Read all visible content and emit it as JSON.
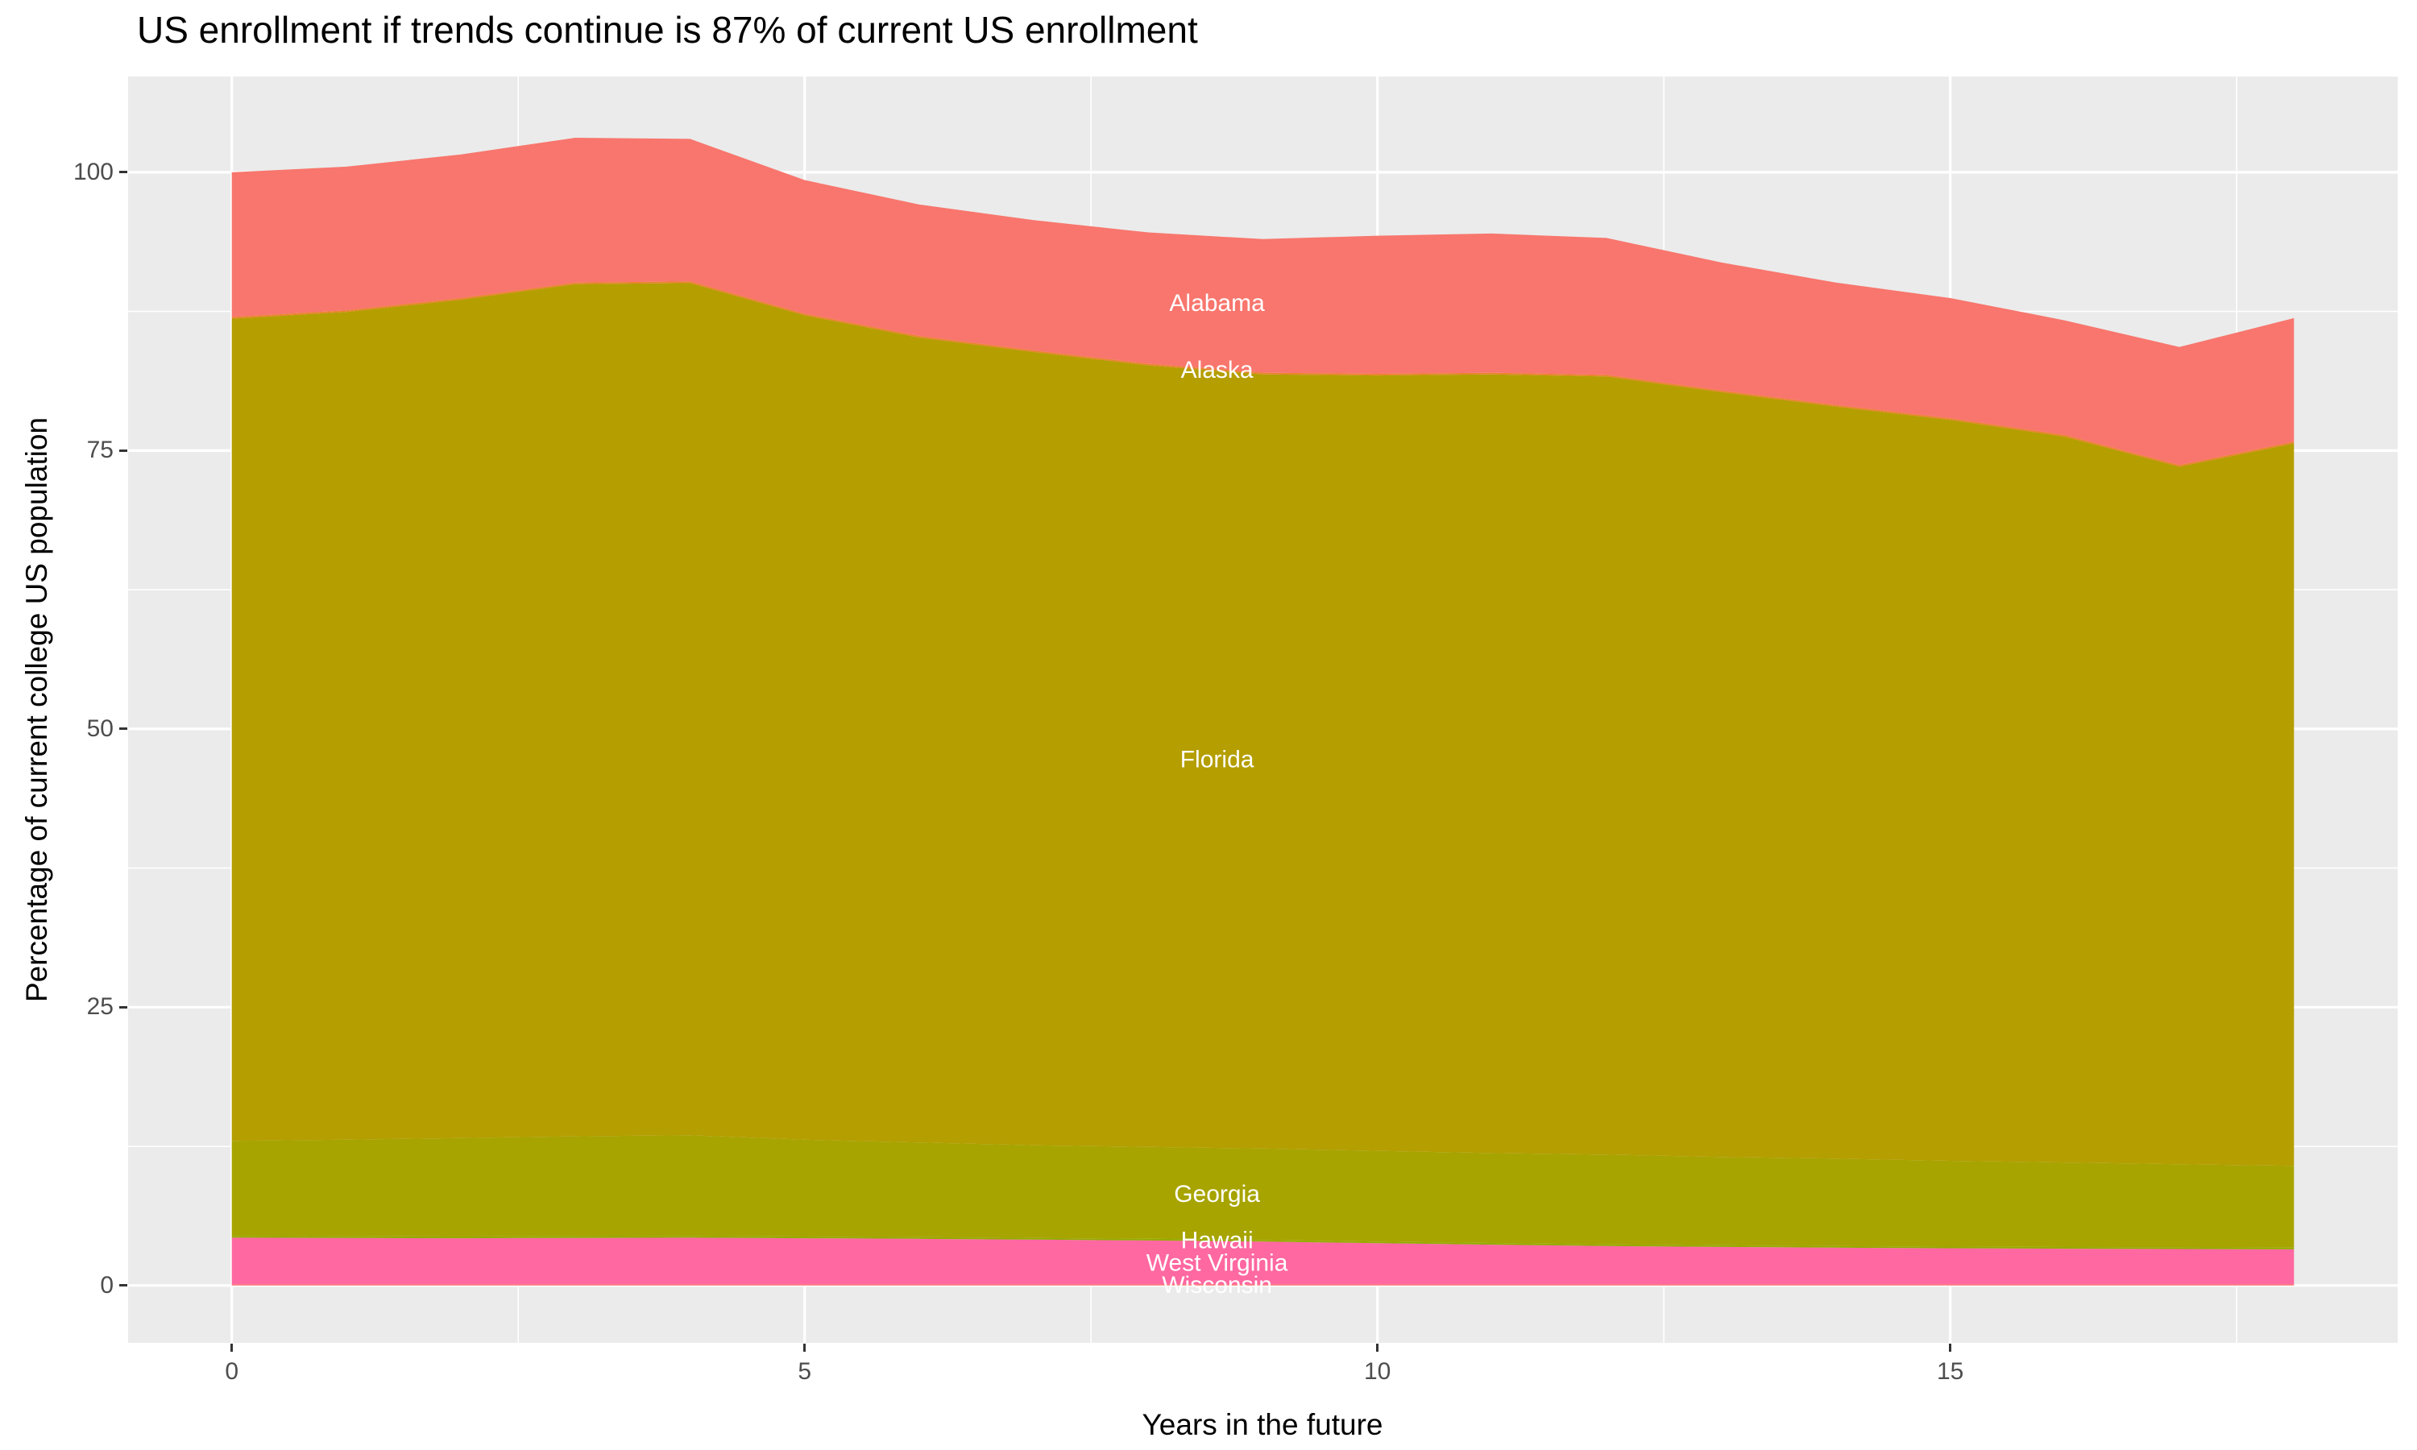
{
  "title": "US enrollment if trends continue is 87% of current US enrollment",
  "axes": {
    "x_label": "Years in the future",
    "y_label": "Percentage of current college US population"
  },
  "style": {
    "panel_background": "#EBEBEB",
    "grid_color": "#FFFFFF",
    "tick_mark_color": "#333333",
    "tick_label_color": "#4D4D4D",
    "area_label_color": "#FFFFFF",
    "title_color": "#000000"
  },
  "chart_data": {
    "type": "area",
    "stacked": true,
    "title": "US enrollment if trends continue is 87% of current US enrollment",
    "xlabel": "Years in the future",
    "ylabel": "Percentage of current college US population",
    "grid": true,
    "legend_position": "none (direct white labels on areas)",
    "x": [
      0,
      1,
      2,
      3,
      4,
      5,
      6,
      7,
      8,
      9,
      10,
      11,
      12,
      13,
      14,
      15,
      16,
      17,
      18
    ],
    "x_ticks": [
      0,
      5,
      10,
      15
    ],
    "x_minor_ticks": [
      2.5,
      7.5,
      12.5,
      17.5
    ],
    "y_ticks": [
      0,
      25,
      50,
      75,
      100
    ],
    "y_minor_ticks": [
      12.5,
      37.5,
      62.5,
      87.5
    ],
    "x_range": [
      -0.905,
      18.905
    ],
    "y_range": [
      -5.15,
      108.6
    ],
    "label_x": 8.6,
    "series": [
      {
        "name": "Alabama",
        "color": "#F8766D",
        "values": [
          13.0,
          12.9,
          12.9,
          13.0,
          12.8,
          12.0,
          11.8,
          11.7,
          11.8,
          12.0,
          12.4,
          12.5,
          12.3,
          11.5,
          11.0,
          10.8,
          10.3,
          10.6,
          11.1
        ]
      },
      {
        "name": "Alaska",
        "color": "#E9842C",
        "values": [
          0.15,
          0.15,
          0.15,
          0.15,
          0.15,
          0.15,
          0.15,
          0.15,
          0.15,
          0.15,
          0.15,
          0.15,
          0.15,
          0.15,
          0.15,
          0.15,
          0.15,
          0.15,
          0.15
        ]
      },
      {
        "name": "Florida",
        "color": "#B49E00",
        "values": [
          73.85,
          74.35,
          75.3,
          76.55,
          76.55,
          74.05,
          72.3,
          71.25,
          70.2,
          69.55,
          69.65,
          69.95,
          69.9,
          68.7,
          67.55,
          66.55,
          65.2,
          62.65,
          64.9
        ]
      },
      {
        "name": "Georgia",
        "color": "#A7A400",
        "values": [
          8.55,
          8.68,
          8.85,
          8.97,
          9.05,
          8.7,
          8.5,
          8.32,
          8.25,
          8.2,
          8.15,
          8.08,
          8.05,
          7.93,
          7.85,
          7.7,
          7.59,
          7.47,
          7.35
        ]
      },
      {
        "name": "Hawaii",
        "color": "#95AA00",
        "values": [
          0.15,
          0.15,
          0.15,
          0.15,
          0.15,
          0.15,
          0.15,
          0.15,
          0.15,
          0.15,
          0.15,
          0.15,
          0.15,
          0.15,
          0.15,
          0.15,
          0.15,
          0.15,
          0.15
        ]
      },
      {
        "name": "West Virginia",
        "color": "#FF68A1",
        "values": [
          4.2,
          4.17,
          4.15,
          4.18,
          4.2,
          4.15,
          4.1,
          4.03,
          3.95,
          3.85,
          3.7,
          3.57,
          3.45,
          3.37,
          3.3,
          3.25,
          3.21,
          3.18,
          3.15
        ]
      },
      {
        "name": "Wisconsin",
        "color": "#FB7168",
        "values": [
          0.1,
          0.1,
          0.1,
          0.1,
          0.1,
          0.1,
          0.1,
          0.1,
          0.1,
          0.1,
          0.1,
          0.1,
          0.1,
          0.1,
          0.1,
          0.1,
          0.1,
          0.1,
          0.1
        ]
      }
    ]
  }
}
